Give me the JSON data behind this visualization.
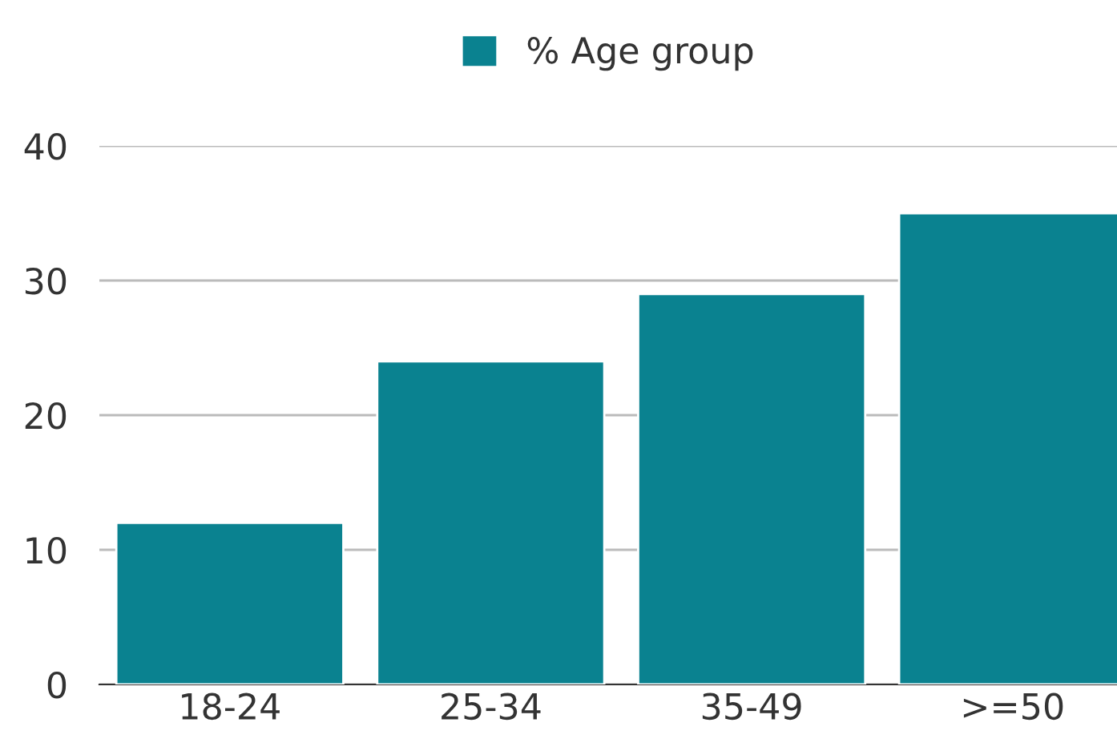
{
  "chart_data": {
    "type": "bar",
    "categories": [
      "18-24",
      "25-34",
      "35-49",
      ">=50"
    ],
    "series": [
      {
        "name": "% Age group",
        "color": "#0a8290",
        "values": [
          12,
          24,
          29,
          35
        ]
      }
    ],
    "ylim": [
      0,
      40
    ],
    "yticks": [
      0,
      10,
      20,
      30,
      40
    ],
    "grid": "y",
    "legend": "top"
  }
}
